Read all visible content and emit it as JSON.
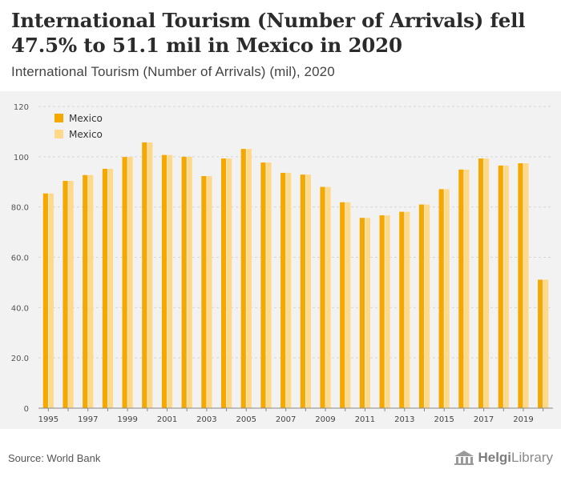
{
  "header": {
    "headline": "International Tourism (Number of Arrivals) fell 47.5% to 51.1 mil in Mexico in 2020",
    "subtitle": "International Tourism (Number of Arrivals) (mil), 2020"
  },
  "footer": {
    "source": "Source: World Bank",
    "logo_brand": "Helgi",
    "logo_suffix": "Library"
  },
  "colors": {
    "series1": "#F5A800",
    "series2": "#FFD98A",
    "grid": "#d6d6d6",
    "plot_bg": "#f2f2f2"
  },
  "chart_data": {
    "type": "bar",
    "title": "International Tourism (Number of Arrivals) (mil), 2020",
    "xlabel": "",
    "ylabel": "",
    "ylim": [
      0,
      120
    ],
    "yticks": [
      "0",
      "20.0",
      "40.0",
      "60.0",
      "80.0",
      "100",
      "120"
    ],
    "ytick_values": [
      0,
      20,
      40,
      60,
      80,
      100,
      120
    ],
    "categories": [
      "1995",
      "1996",
      "1997",
      "1998",
      "1999",
      "2000",
      "2001",
      "2002",
      "2003",
      "2004",
      "2005",
      "2006",
      "2007",
      "2008",
      "2009",
      "2010",
      "2011",
      "2012",
      "2013",
      "2014",
      "2015",
      "2016",
      "2017",
      "2018",
      "2019",
      "2020"
    ],
    "xtick_labels": [
      "1995",
      "1997",
      "1999",
      "2001",
      "2003",
      "2005",
      "2007",
      "2009",
      "2011",
      "2013",
      "2015",
      "2017",
      "2019"
    ],
    "legend": {
      "position": "top-left"
    },
    "series": [
      {
        "name": "Mexico",
        "values": [
          85.4,
          90.4,
          92.7,
          95.2,
          99.9,
          105.7,
          100.7,
          100.0,
          92.3,
          99.3,
          103.1,
          97.7,
          93.6,
          92.9,
          88.0,
          81.9,
          75.7,
          76.7,
          78.1,
          81.0,
          87.1,
          94.9,
          99.3,
          96.5,
          97.4,
          51.1
        ]
      },
      {
        "name": "Mexico",
        "values": [
          85.4,
          90.4,
          92.7,
          95.2,
          99.9,
          105.7,
          100.7,
          100.0,
          92.3,
          99.3,
          103.1,
          97.7,
          93.6,
          92.9,
          88.0,
          81.9,
          75.7,
          76.7,
          78.1,
          81.0,
          87.1,
          94.9,
          99.3,
          96.5,
          97.4,
          51.1
        ]
      }
    ]
  }
}
